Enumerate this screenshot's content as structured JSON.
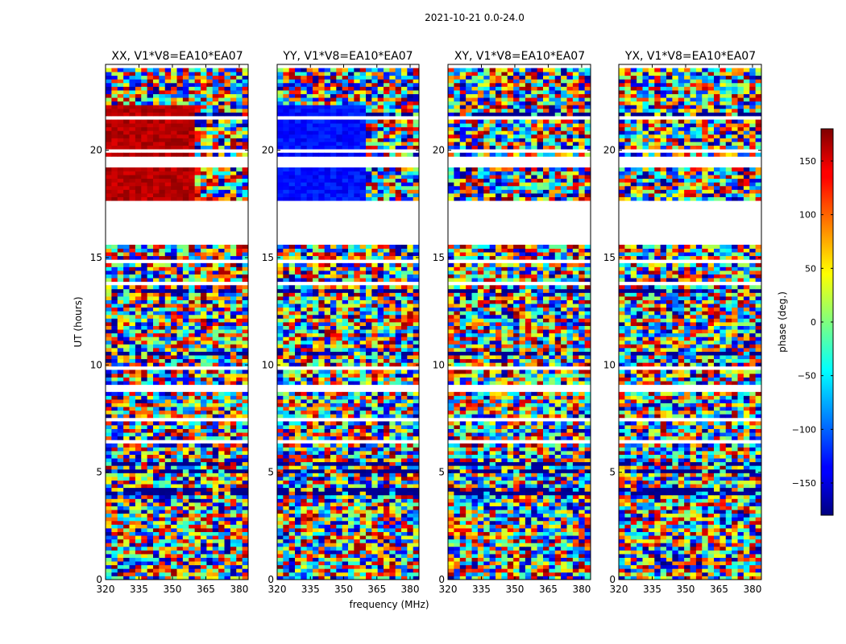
{
  "chart_data": {
    "type": "heatmap",
    "suptitle": "2021-10-21 0.0-24.0",
    "xlabel": "frequency (MHz)",
    "ylabel": "UT (hours)",
    "xlim": [
      320,
      384
    ],
    "ylim": [
      0,
      24
    ],
    "x_ticks": [
      "320",
      "335",
      "350",
      "365",
      "380"
    ],
    "y_ticks": [
      "0",
      "5",
      "10",
      "15",
      "20"
    ],
    "colorbar": {
      "label": "phase (deg.)",
      "range": [
        -180,
        180
      ],
      "ticks": [
        "150",
        "100",
        "50",
        "0",
        "−50",
        "−100",
        "−150"
      ],
      "colormap": "jet"
    },
    "panels": [
      {
        "title": "XX, V1*V8=EA10*EA07",
        "coherent_phase_deg": 160,
        "rfi_above_MHz": 361
      },
      {
        "title": "YY, V1*V8=EA10*EA07",
        "coherent_phase_deg": -130,
        "rfi_above_MHz": 361
      },
      {
        "title": "XY, V1*V8=EA10*EA07",
        "coherent_phase_deg": null,
        "rfi_above_MHz": null
      },
      {
        "title": "YX, V1*V8=EA10*EA07",
        "coherent_phase_deg": null,
        "rfi_above_MHz": null
      }
    ],
    "data_gaps_hours": [
      [
        15.6,
        17.6
      ],
      [
        19.2,
        19.8
      ]
    ]
  }
}
